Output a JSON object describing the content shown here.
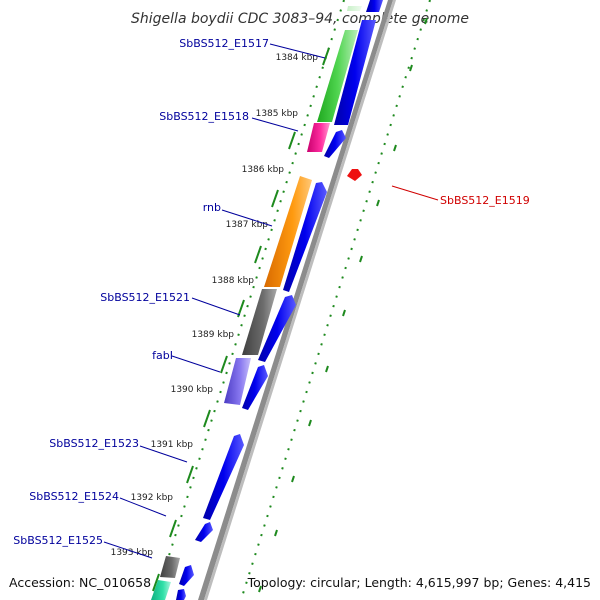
{
  "title": "Shigella boydii CDC 3083–94, complete genome",
  "footer": {
    "accession": "Accession: NC_010658",
    "topology": "Topology: circular; Length: 4,615,997 bp; Genes: 4,415"
  },
  "colors": {
    "label_blue": "#00009c",
    "highlight_red": "#d00000",
    "tick_green": "#1e8a1e",
    "backbone_gray": "#8c8c8c",
    "forward_blue": "#0000ee"
  },
  "ticks": [
    {
      "label": "1384 kbp"
    },
    {
      "label": "1385 kbp"
    },
    {
      "label": "1386 kbp"
    },
    {
      "label": "1387 kbp"
    },
    {
      "label": "1388 kbp"
    },
    {
      "label": "1389 kbp"
    },
    {
      "label": "1390 kbp"
    },
    {
      "label": "1391 kbp"
    },
    {
      "label": "1392 kbp"
    },
    {
      "label": "1393 kbp"
    }
  ],
  "genes": [
    {
      "label": "SbBS512_E1517",
      "color": "#3ec93e",
      "highlight": false
    },
    {
      "label": "SbBS512_E1518",
      "color": "#e8168c",
      "highlight": false
    },
    {
      "label": "SbBS512_E1519",
      "color": "#ee1111",
      "highlight": true
    },
    {
      "label": "rnb",
      "color": "#ff8c00",
      "highlight": false
    },
    {
      "label": "SbBS512_E1521",
      "color": "#606060",
      "highlight": false
    },
    {
      "label": "fabI",
      "color": "#7b68ee",
      "highlight": false
    },
    {
      "label": "SbBS512_E1523",
      "color": "#0000ee",
      "highlight": false
    },
    {
      "label": "SbBS512_E1524",
      "color": "#0000ee",
      "highlight": false
    },
    {
      "label": "SbBS512_E1525",
      "color": "#606060",
      "highlight": false
    }
  ]
}
